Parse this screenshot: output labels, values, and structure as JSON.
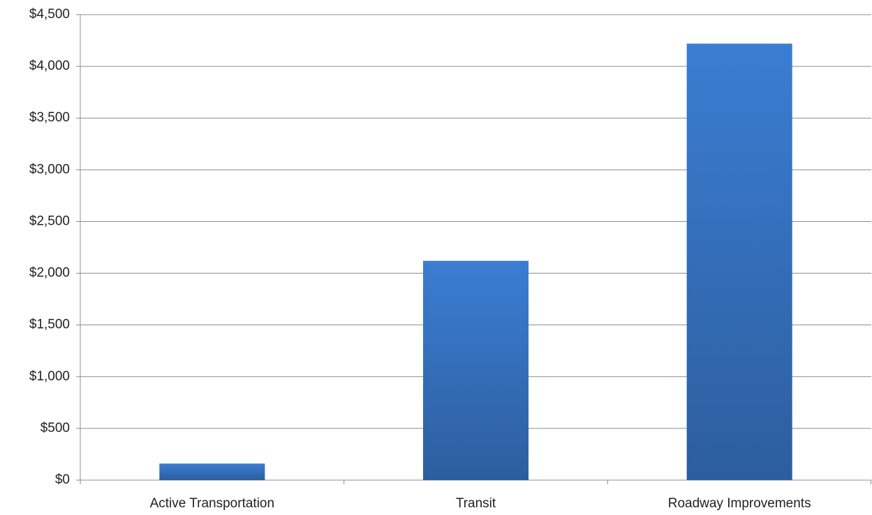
{
  "chart_data": {
    "type": "bar",
    "categories": [
      "Active Transportation",
      "Transit",
      "Roadway Improvements"
    ],
    "values": [
      160,
      2120,
      4220
    ],
    "color": "#3b7dd2",
    "ylim": [
      0,
      4500
    ],
    "yticks": [
      {
        "value": 0,
        "label": "$0"
      },
      {
        "value": 500,
        "label": "$500"
      },
      {
        "value": 1000,
        "label": "$1,000"
      },
      {
        "value": 1500,
        "label": "$1,500"
      },
      {
        "value": 2000,
        "label": "$2,000"
      },
      {
        "value": 2500,
        "label": "$2,500"
      },
      {
        "value": 3000,
        "label": "$3,000"
      },
      {
        "value": 3500,
        "label": "$3,500"
      },
      {
        "value": 4000,
        "label": "$4,000"
      },
      {
        "value": 4500,
        "label": "$4,500"
      }
    ],
    "grid": true
  }
}
